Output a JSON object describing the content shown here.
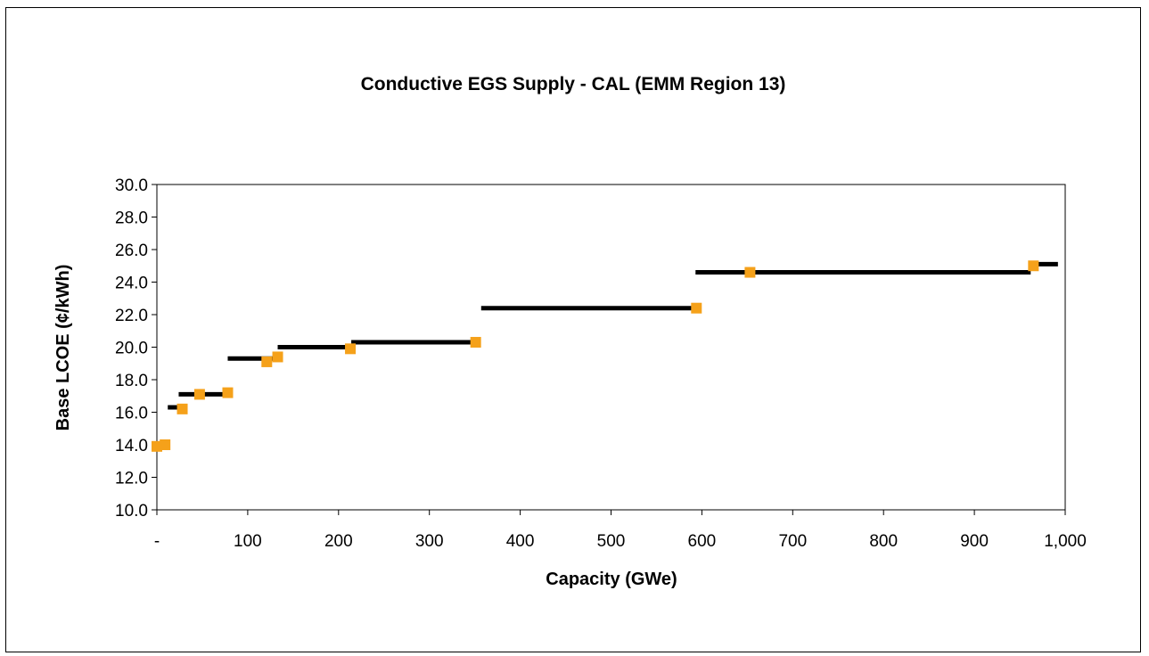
{
  "chart_data": {
    "type": "scatter",
    "title": "Conductive EGS Supply  - CAL (EMM Region 13)",
    "xlabel": "Capacity (GWe)",
    "ylabel": "Base LCOE (¢/kWh)",
    "xlim": [
      0,
      1000
    ],
    "ylim": [
      10,
      30
    ],
    "x_ticks": [
      0,
      100,
      200,
      300,
      400,
      500,
      600,
      700,
      800,
      900,
      1000
    ],
    "x_tick_labels": [
      "-",
      "100",
      "200",
      "300",
      "400",
      "500",
      "600",
      "700",
      "800",
      "900",
      "1,000"
    ],
    "y_ticks": [
      10,
      12,
      14,
      16,
      18,
      20,
      22,
      24,
      26,
      28,
      30
    ],
    "y_tick_labels": [
      "10.0",
      "12.0",
      "14.0",
      "16.0",
      "18.0",
      "20.0",
      "22.0",
      "24.0",
      "26.0",
      "28.0",
      "30.0"
    ],
    "grid": false,
    "legend": "none",
    "series": [
      {
        "type": "steps",
        "color": "#000000",
        "segments": [
          {
            "x0": 0,
            "x1": 10,
            "y": 14.0
          },
          {
            "x0": 12,
            "x1": 24,
            "y": 16.3
          },
          {
            "x0": 24,
            "x1": 80,
            "y": 17.1
          },
          {
            "x0": 78,
            "x1": 132,
            "y": 19.3
          },
          {
            "x0": 133,
            "x1": 216,
            "y": 20.0
          },
          {
            "x0": 214,
            "x1": 356,
            "y": 20.3
          },
          {
            "x0": 357,
            "x1": 590,
            "y": 22.4
          },
          {
            "x0": 593,
            "x1": 962,
            "y": 24.6
          },
          {
            "x0": 964,
            "x1": 992,
            "y": 25.1
          }
        ]
      },
      {
        "type": "points",
        "color": "#f5a11a",
        "x": [
          0,
          9,
          28,
          47,
          78,
          121,
          133,
          213,
          351,
          594,
          653,
          965
        ],
        "y": [
          13.9,
          14.0,
          16.2,
          17.1,
          17.2,
          19.1,
          19.4,
          19.9,
          20.3,
          22.4,
          24.6,
          25.0
        ]
      }
    ]
  }
}
